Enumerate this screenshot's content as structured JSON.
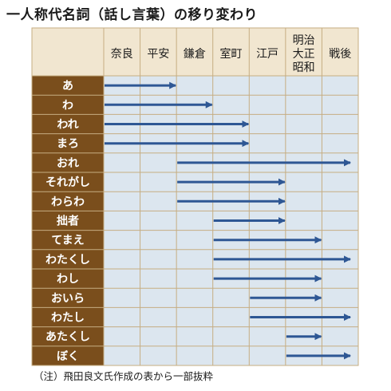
{
  "title": "一人称代名詞（話し言葉）の移り変わり",
  "periods": [
    "奈良",
    "平安",
    "鎌倉",
    "室町",
    "江戸",
    "明治\n大正\n昭和",
    "戦後"
  ],
  "rows": [
    {
      "label": "あ",
      "start": 0,
      "end": 2
    },
    {
      "label": "わ",
      "start": 0,
      "end": 3
    },
    {
      "label": "われ",
      "start": 0,
      "end": 4
    },
    {
      "label": "まろ",
      "start": 0,
      "end": 4
    },
    {
      "label": "おれ",
      "start": 2,
      "end": 7
    },
    {
      "label": "それがし",
      "start": 2,
      "end": 5
    },
    {
      "label": "わらわ",
      "start": 2,
      "end": 5
    },
    {
      "label": "拙者",
      "start": 3,
      "end": 5
    },
    {
      "label": "てまえ",
      "start": 3,
      "end": 6
    },
    {
      "label": "わたくし",
      "start": 3,
      "end": 7
    },
    {
      "label": "わし",
      "start": 3,
      "end": 6
    },
    {
      "label": "おいら",
      "start": 4,
      "end": 6
    },
    {
      "label": "わたし",
      "start": 4,
      "end": 7
    },
    {
      "label": "あたくし",
      "start": 5,
      "end": 6
    },
    {
      "label": "ぼく",
      "start": 5,
      "end": 7
    }
  ],
  "note": "（注）飛田良文氏作成の表から一部抜粋",
  "colors": {
    "header_bg": "#f1e6d0",
    "row_label_bg": "#7a4e1c",
    "cell_bg": "#dce6ef",
    "grid_line": "#c6ad82",
    "arrow": "#2e5794"
  }
}
